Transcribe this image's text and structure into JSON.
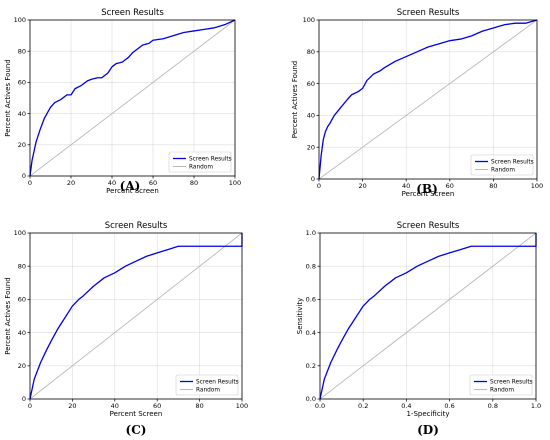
{
  "panels_label": "Screen Results figure panels",
  "colors": {
    "screen_results": "#0000e6",
    "random": "#b9b9b9",
    "grid": "#dcdcdc"
  },
  "chart_data": [
    {
      "type": "line",
      "panel_label": "(A)",
      "title": "Screen Results",
      "xlabel": "Percent Screen",
      "ylabel": "Percent Actives Found",
      "xlim": [
        0,
        100
      ],
      "ylim": [
        0,
        100
      ],
      "xticks": [
        "0",
        "20",
        "40",
        "60",
        "80",
        "100"
      ],
      "yticks": [
        "0",
        "20",
        "40",
        "60",
        "80",
        "100"
      ],
      "grid": true,
      "legend_position": "lower-right",
      "series": [
        {
          "name": "Screen Results",
          "x": [
            0,
            1,
            2,
            3,
            5,
            7,
            10,
            12,
            15,
            18,
            20,
            22,
            25,
            28,
            30,
            33,
            35,
            38,
            40,
            42,
            45,
            48,
            50,
            52,
            55,
            58,
            60,
            65,
            70,
            75,
            80,
            85,
            90,
            95,
            100
          ],
          "y": [
            0,
            10,
            16,
            22,
            30,
            37,
            44,
            47,
            49,
            52,
            52,
            56,
            58,
            61,
            62,
            63,
            63,
            66,
            70,
            72,
            73,
            76,
            79,
            81,
            84,
            85,
            87,
            88,
            90,
            92,
            93,
            94,
            95,
            97,
            100
          ]
        },
        {
          "name": "Random",
          "x": [
            0,
            100
          ],
          "y": [
            0,
            100
          ]
        }
      ]
    },
    {
      "type": "line",
      "panel_label": "(B)",
      "title": "Screen Results",
      "xlabel": "Percent Screen",
      "ylabel": "Percent Actives Found",
      "xlim": [
        0,
        100
      ],
      "ylim": [
        0,
        100
      ],
      "xticks": [
        "0",
        "20",
        "40",
        "60",
        "80",
        "100"
      ],
      "yticks": [
        "0",
        "20",
        "40",
        "60",
        "80",
        "100"
      ],
      "grid": true,
      "legend_position": "lower-right",
      "series": [
        {
          "name": "Screen Results",
          "x": [
            0,
            1,
            2,
            3,
            4,
            5,
            7,
            10,
            13,
            15,
            18,
            20,
            22,
            25,
            28,
            30,
            35,
            40,
            45,
            50,
            55,
            60,
            65,
            70,
            75,
            80,
            85,
            90,
            95,
            100
          ],
          "y": [
            0,
            15,
            25,
            30,
            33,
            35,
            40,
            45,
            50,
            53,
            55,
            57,
            62,
            66,
            68,
            70,
            74,
            77,
            80,
            83,
            85,
            87,
            88,
            90,
            93,
            95,
            97,
            98,
            98,
            100
          ]
        },
        {
          "name": "Random",
          "x": [
            0,
            100
          ],
          "y": [
            0,
            100
          ]
        }
      ]
    },
    {
      "type": "line",
      "panel_label": "(C)",
      "title": "Screen Results",
      "xlabel": "Percent Screen",
      "ylabel": "Percent Actives Found",
      "xlim": [
        0,
        100
      ],
      "ylim": [
        0,
        100
      ],
      "xticks": [
        "0",
        "20",
        "40",
        "60",
        "80",
        "100"
      ],
      "yticks": [
        "0",
        "20",
        "40",
        "60",
        "80",
        "100"
      ],
      "grid": true,
      "legend_position": "lower-right",
      "series": [
        {
          "name": "Screen Results",
          "x": [
            0,
            2,
            5,
            8,
            10,
            13,
            15,
            18,
            20,
            23,
            25,
            30,
            35,
            40,
            45,
            50,
            55,
            60,
            65,
            70,
            80,
            90,
            99.5,
            100,
            100
          ],
          "y": [
            0,
            12,
            22,
            30,
            35,
            42,
            46,
            52,
            56,
            60,
            62,
            68,
            73,
            76,
            80,
            83,
            86,
            88,
            90,
            92,
            92,
            92,
            92,
            92,
            100
          ]
        },
        {
          "name": "Random",
          "x": [
            0,
            100
          ],
          "y": [
            0,
            100
          ]
        }
      ]
    },
    {
      "type": "line",
      "panel_label": "(D)",
      "title": "Screen Results",
      "xlabel": "1-Specificity",
      "ylabel": "Sensitivity",
      "xlim": [
        0,
        1
      ],
      "ylim": [
        0,
        1
      ],
      "xticks": [
        "0.0",
        "0.2",
        "0.4",
        "0.6",
        "0.8",
        "1.0"
      ],
      "yticks": [
        "0.0",
        "0.2",
        "0.4",
        "0.6",
        "0.8",
        "1.0"
      ],
      "grid": true,
      "legend_position": "lower-right",
      "series": [
        {
          "name": "Screen Results",
          "x": [
            0,
            0.02,
            0.05,
            0.08,
            0.1,
            0.13,
            0.15,
            0.18,
            0.2,
            0.23,
            0.25,
            0.3,
            0.35,
            0.4,
            0.45,
            0.5,
            0.55,
            0.6,
            0.65,
            0.7,
            0.8,
            0.9,
            0.995,
            1.0,
            1.0
          ],
          "y": [
            0,
            0.12,
            0.22,
            0.3,
            0.35,
            0.42,
            0.46,
            0.52,
            0.56,
            0.6,
            0.62,
            0.68,
            0.73,
            0.76,
            0.8,
            0.83,
            0.86,
            0.88,
            0.9,
            0.92,
            0.92,
            0.92,
            0.92,
            0.92,
            1.0
          ]
        },
        {
          "name": "Random",
          "x": [
            0,
            1
          ],
          "y": [
            0,
            1
          ]
        }
      ]
    }
  ]
}
